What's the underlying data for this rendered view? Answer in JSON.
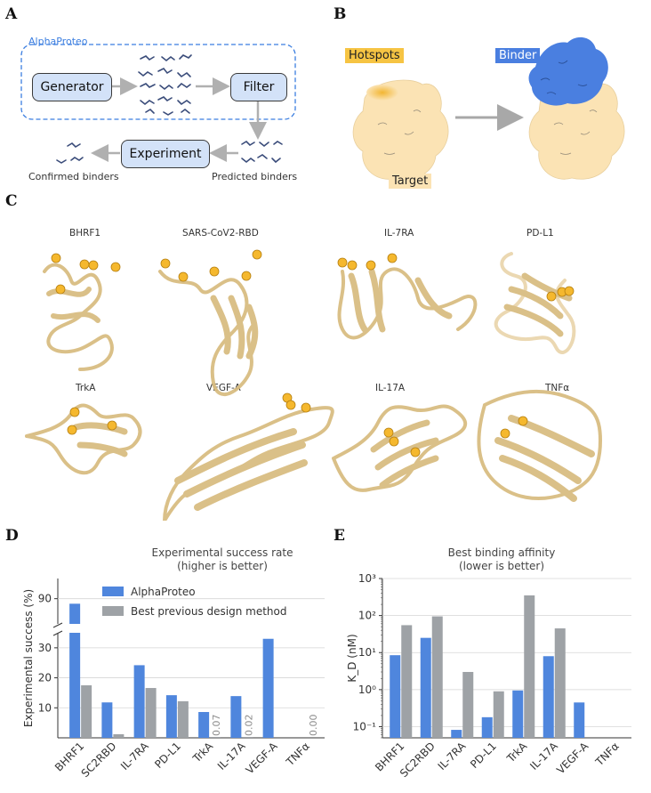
{
  "panels": {
    "a": "A",
    "b": "B",
    "c": "C",
    "d": "D",
    "e": "E"
  },
  "panel_a": {
    "frame_title": "AlphaProteo",
    "generator": "Generator",
    "filter": "Filter",
    "experiment": "Experiment",
    "confirmed": "Confirmed binders",
    "predicted": "Predicted binders",
    "colors": {
      "accent": "#3b7ee0",
      "box_fill": "#d3e2f8",
      "arrow": "#b0b0b0"
    }
  },
  "panel_b": {
    "hotspots": "Hotspots",
    "binder": "Binder",
    "target": "Target",
    "colors": {
      "target": "#fbe3b4",
      "hotspot": "#f5c242",
      "binder": "#4a7fe0"
    }
  },
  "panel_c": {
    "targets": [
      "BHRF1",
      "SARS-CoV2-RBD",
      "IL-7RA",
      "PD-L1",
      "TrkA",
      "VEGF-A",
      "IL-17A",
      "TNFα"
    ]
  },
  "chart_data": [
    {
      "type": "bar",
      "title": "Experimental success rate",
      "subtitle": "(higher is better)",
      "ylabel": "Experimental success (%)",
      "categories": [
        "BHRF1",
        "SC2RBD",
        "IL-7RA",
        "PD-L1",
        "TrkA",
        "IL-17A",
        "VEGF-A",
        "TNFα"
      ],
      "series": [
        {
          "name": "AlphaProteo",
          "color": "#4f86dd",
          "values": [
            88,
            11.8,
            24.2,
            14.2,
            8.6,
            13.9,
            33.0,
            0.0
          ]
        },
        {
          "name": "Best previous design method",
          "color": "#9ea2a6",
          "values": [
            17.5,
            1.2,
            16.6,
            12.2,
            0.07,
            0.02,
            0.0,
            0.0
          ]
        }
      ],
      "value_labels": [
        "0.07",
        "0.02",
        "0.00"
      ],
      "yticks": [
        "10",
        "20",
        "30",
        "90"
      ],
      "broken_axis": true,
      "ylim_lower": [
        0,
        35
      ],
      "ylim_upper": [
        80,
        98
      ],
      "legend": "top-right"
    },
    {
      "type": "bar",
      "title": "Best binding affinity",
      "subtitle": "(lower is better)",
      "ylabel": "K_D (nM)",
      "yscale": "log",
      "categories": [
        "BHRF1",
        "SC2RBD",
        "IL-7RA",
        "PD-L1",
        "TrkA",
        "IL-17A",
        "VEGF-A",
        "TNFα"
      ],
      "series": [
        {
          "name": "AlphaProteo",
          "color": "#4f86dd",
          "values": [
            8.5,
            25,
            0.082,
            0.18,
            0.95,
            8.0,
            0.45,
            null
          ]
        },
        {
          "name": "Best previous design method",
          "color": "#9ea2a6",
          "values": [
            55,
            95,
            3.0,
            0.9,
            350,
            45,
            null,
            null
          ]
        }
      ],
      "yticks": [
        "10⁻¹",
        "10⁰",
        "10¹",
        "10²",
        "10³"
      ],
      "ylim": [
        0.05,
        1000
      ]
    }
  ]
}
